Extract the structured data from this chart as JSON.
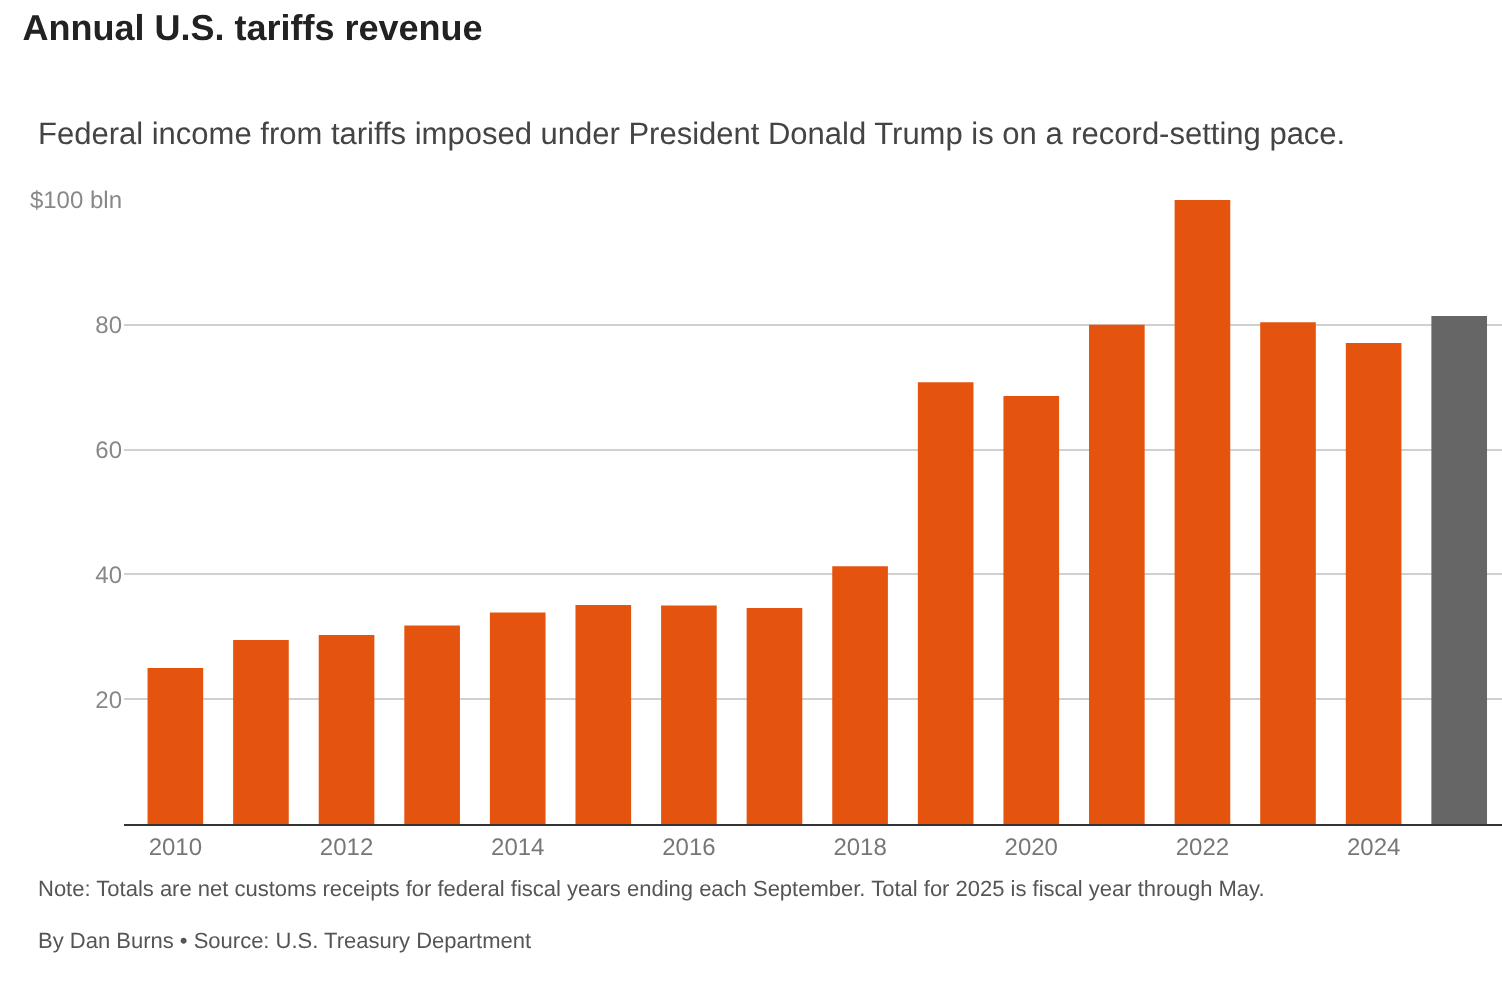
{
  "chart_data": {
    "type": "bar",
    "title": "Annual U.S. tariffs revenue",
    "subtitle": "Federal income from tariffs imposed under President Donald Trump is on a record-setting pace.",
    "x": [
      2010,
      2011,
      2012,
      2013,
      2014,
      2015,
      2016,
      2017,
      2018,
      2019,
      2020,
      2021,
      2022,
      2023,
      2024,
      2025
    ],
    "values": [
      25.0,
      29.5,
      30.3,
      31.8,
      33.9,
      35.1,
      35.0,
      34.6,
      41.3,
      70.8,
      68.6,
      80.0,
      100.0,
      80.4,
      77.1,
      81.4
    ],
    "colors": [
      "#e5540f",
      "#e5540f",
      "#e5540f",
      "#e5540f",
      "#e5540f",
      "#e5540f",
      "#e5540f",
      "#e5540f",
      "#e5540f",
      "#e5540f",
      "#e5540f",
      "#e5540f",
      "#e5540f",
      "#e5540f",
      "#e5540f",
      "#666666"
    ],
    "xlim": [
      2009.4,
      2025.5
    ],
    "xticks": [
      2010,
      2012,
      2014,
      2016,
      2018,
      2020,
      2022,
      2024
    ],
    "ylim": [
      0,
      100
    ],
    "yticks": [
      {
        "value": 20,
        "label": "20"
      },
      {
        "value": 40,
        "label": "40"
      },
      {
        "value": 60,
        "label": "60"
      },
      {
        "value": 80,
        "label": "80"
      },
      {
        "value": 100,
        "label": "$100 bln"
      }
    ],
    "grid": "y",
    "annotations": [
      "Note: Totals are net customs receipts for federal fiscal years ending each September. Total for 2025 is fiscal year through May.",
      "By Dan Burns • Source: U.S. Treasury Department"
    ]
  }
}
